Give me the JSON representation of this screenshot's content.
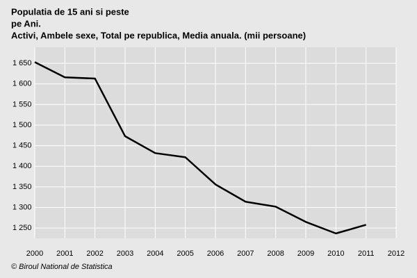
{
  "chart_data": {
    "type": "line",
    "title_lines": [
      "Populatia de 15 ani si peste",
      "pe Ani.",
      "Activi, Ambele sexe, Total pe republica, Media anuala. (mii persoane)"
    ],
    "source": "© Biroul National de Statistica",
    "x": [
      2000,
      2001,
      2002,
      2003,
      2004,
      2005,
      2006,
      2007,
      2008,
      2009,
      2010,
      2011
    ],
    "values": [
      1653,
      1616,
      1613,
      1473,
      1432,
      1422,
      1356,
      1314,
      1302,
      1265,
      1237,
      1258
    ],
    "color": "#000000",
    "xlim": [
      2000,
      2012
    ],
    "xticks": [
      2000,
      2001,
      2002,
      2003,
      2004,
      2005,
      2006,
      2007,
      2008,
      2009,
      2010,
      2011,
      2012
    ],
    "ylim": [
      1225,
      1689
    ],
    "yticks": [
      {
        "value": 1250,
        "label": "1 250"
      },
      {
        "value": 1300,
        "label": "1 300"
      },
      {
        "value": 1350,
        "label": "1 350"
      },
      {
        "value": 1400,
        "label": "1 400"
      },
      {
        "value": 1450,
        "label": "1 450"
      },
      {
        "value": 1500,
        "label": "1 500"
      },
      {
        "value": 1550,
        "label": "1 550"
      },
      {
        "value": 1600,
        "label": "1 600"
      },
      {
        "value": 1650,
        "label": "1 650"
      }
    ],
    "grid": true
  }
}
